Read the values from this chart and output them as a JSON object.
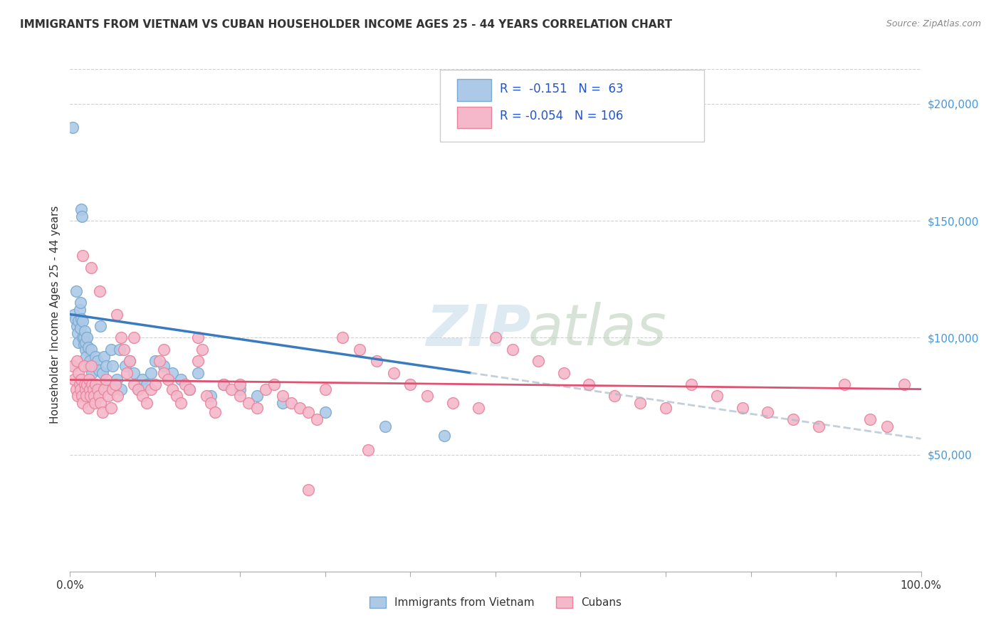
{
  "title": "IMMIGRANTS FROM VIETNAM VS CUBAN HOUSEHOLDER INCOME AGES 25 - 44 YEARS CORRELATION CHART",
  "source": "Source: ZipAtlas.com",
  "ylabel": "Householder Income Ages 25 - 44 years",
  "xlim": [
    0,
    1
  ],
  "ylim": [
    0,
    220000
  ],
  "legend_label1": "Immigrants from Vietnam",
  "legend_label2": "Cubans",
  "vietnam_color": "#adc9e8",
  "cuban_color": "#f5b8ca",
  "vietnam_edge": "#7aaad0",
  "cuban_edge": "#e8849a",
  "trend_vietnam_color": "#3a7bbf",
  "trend_cuban_color": "#e05070",
  "watermark_zip_color": "#c8dce8",
  "watermark_atlas_color": "#b8ccb8",
  "grid_color": "#d0d0d0",
  "ytick_color": "#4499dd",
  "viet_trend_x0": 0.0,
  "viet_trend_y0": 110000,
  "viet_trend_x1": 0.47,
  "viet_trend_y1": 85000,
  "cuba_trend_x0": 0.0,
  "cuba_trend_y0": 82000,
  "cuba_trend_x1": 1.0,
  "cuba_trend_y1": 78000
}
